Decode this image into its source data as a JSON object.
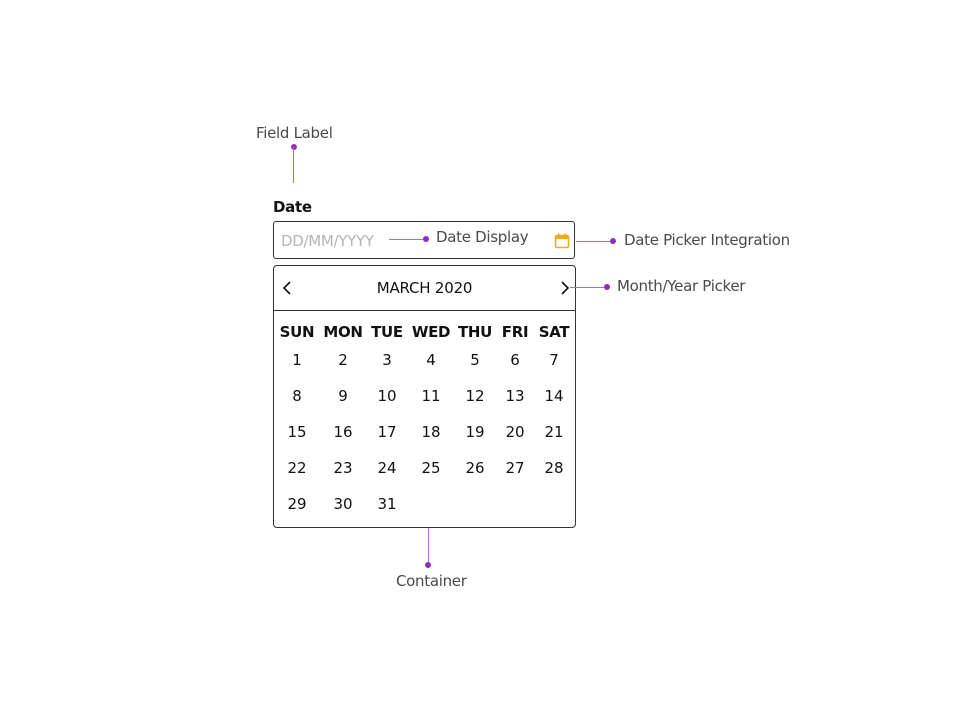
{
  "annotations": {
    "field_label": "Field Label",
    "date_display": "Date Display",
    "date_picker_integration": "Date Picker Integration",
    "month_year_picker": "Month/Year Picker",
    "container": "Container"
  },
  "field": {
    "label": "Date",
    "value": "",
    "placeholder": "DD/MM/YYYY"
  },
  "calendar": {
    "month_title": "MARCH 2020",
    "weekdays": [
      "SUN",
      "MON",
      "TUE",
      "WED",
      "THU",
      "FRI",
      "SAT"
    ],
    "weeks": [
      [
        "1",
        "2",
        "3",
        "4",
        "5",
        "6",
        "7"
      ],
      [
        "8",
        "9",
        "10",
        "11",
        "12",
        "13",
        "14"
      ],
      [
        "15",
        "16",
        "17",
        "18",
        "19",
        "20",
        "21"
      ],
      [
        "22",
        "23",
        "24",
        "25",
        "26",
        "27",
        "28"
      ],
      [
        "29",
        "30",
        "31"
      ]
    ]
  },
  "colors": {
    "accent": "#8a2fc1",
    "connector": "#b06ad6",
    "calendar_icon": "#f4a916"
  },
  "icons": {
    "calendar": "calendar-icon",
    "prev": "chevron-left-icon",
    "next": "chevron-right-icon"
  }
}
